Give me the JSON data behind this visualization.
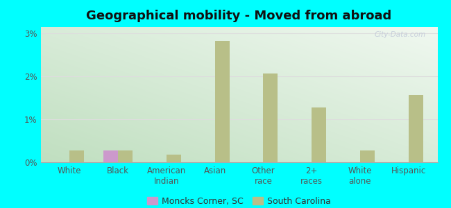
{
  "title": "Geographical mobility - Moved from abroad",
  "categories": [
    "White",
    "Black",
    "American\nIndian",
    "Asian",
    "Other\nrace",
    "2+\nraces",
    "White\nalone",
    "Hispanic"
  ],
  "moncks_corner": [
    0.0,
    0.27,
    0.0,
    0.0,
    0.0,
    0.0,
    0.0,
    0.0
  ],
  "south_carolina": [
    0.28,
    0.28,
    0.18,
    2.83,
    2.07,
    1.28,
    0.28,
    1.57
  ],
  "bar_width": 0.3,
  "moncks_color": "#cc99cc",
  "sc_color": "#b8bf88",
  "ylim": [
    0,
    3.15
  ],
  "yticks": [
    0,
    1,
    2,
    3
  ],
  "ytick_labels": [
    "0%",
    "1%",
    "2%",
    "3%"
  ],
  "bg_top_right": "#e8f0e8",
  "bg_bottom_left": "#c0dfc0",
  "outer_bg": "#00ffff",
  "grid_color": "#dddddd",
  "title_fontsize": 13,
  "tick_fontsize": 8.5,
  "legend_fontsize": 9
}
